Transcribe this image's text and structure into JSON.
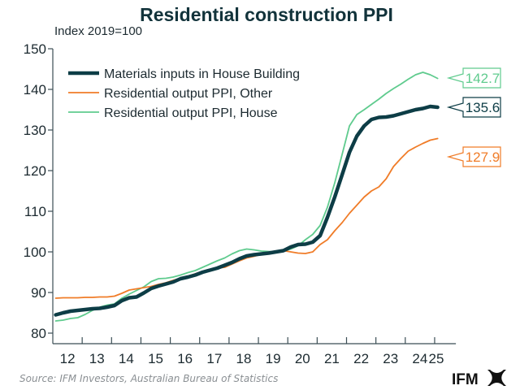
{
  "chart_data": {
    "type": "line",
    "title": "Residential construction PPI",
    "ylabel": "Index 2019=100",
    "xlabel": "",
    "ylim": [
      80,
      150
    ],
    "yticks": [
      80,
      90,
      100,
      110,
      120,
      130,
      140,
      150
    ],
    "xlim": [
      2012,
      2025.25
    ],
    "xtick_labels": [
      "12",
      "13",
      "14",
      "15",
      "16",
      "17",
      "18",
      "19",
      "20",
      "21",
      "22",
      "23",
      "24",
      "25"
    ],
    "grid": false,
    "legend_position": "top-left",
    "x": [
      2012.0,
      2012.25,
      2012.5,
      2012.75,
      2013.0,
      2013.25,
      2013.5,
      2013.75,
      2014.0,
      2014.25,
      2014.5,
      2014.75,
      2015.0,
      2015.25,
      2015.5,
      2015.75,
      2016.0,
      2016.25,
      2016.5,
      2016.75,
      2017.0,
      2017.25,
      2017.5,
      2017.75,
      2018.0,
      2018.25,
      2018.5,
      2018.75,
      2019.0,
      2019.25,
      2019.5,
      2019.75,
      2020.0,
      2020.25,
      2020.5,
      2020.75,
      2021.0,
      2021.25,
      2021.5,
      2021.75,
      2022.0,
      2022.25,
      2022.5,
      2022.75,
      2023.0,
      2023.25,
      2023.5,
      2023.75,
      2024.0,
      2024.25,
      2024.5,
      2024.75,
      2025.0
    ],
    "series": [
      {
        "name": "Materials inputs in House Building",
        "color": "#0d3d46",
        "end_label": "135.6",
        "values": [
          84.5,
          85.0,
          85.4,
          85.6,
          85.8,
          86.0,
          86.1,
          86.4,
          86.8,
          88.0,
          88.7,
          88.9,
          89.9,
          91.0,
          91.6,
          92.1,
          92.6,
          93.4,
          93.8,
          94.3,
          95.0,
          95.5,
          96.0,
          96.7,
          97.4,
          98.3,
          99.0,
          99.3,
          99.5,
          99.7,
          100.0,
          100.3,
          101.2,
          101.8,
          101.9,
          102.4,
          104.0,
          108.5,
          113.5,
          119.0,
          124.5,
          128.5,
          131.0,
          132.6,
          133.1,
          133.2,
          133.5,
          134.0,
          134.5,
          135.0,
          135.3,
          135.8,
          135.6
        ]
      },
      {
        "name": "Residential output PPI, Other",
        "color": "#f07c28",
        "end_label": "127.9",
        "values": [
          88.6,
          88.7,
          88.7,
          88.7,
          88.8,
          88.8,
          88.9,
          88.9,
          89.1,
          89.8,
          90.6,
          90.9,
          91.2,
          91.5,
          92.0,
          92.4,
          93.0,
          93.5,
          94.0,
          94.6,
          95.2,
          95.7,
          96.0,
          96.2,
          97.0,
          97.8,
          98.5,
          98.9,
          99.4,
          99.9,
          100.2,
          100.3,
          100.0,
          99.7,
          99.6,
          100.0,
          101.8,
          103.0,
          105.2,
          107.2,
          109.5,
          111.5,
          113.5,
          115.0,
          116.0,
          118.0,
          121.0,
          123.0,
          124.8,
          125.8,
          126.7,
          127.5,
          127.9
        ]
      },
      {
        "name": "Residential output PPI, House",
        "color": "#5fcb8e",
        "end_label": "142.7",
        "values": [
          83.0,
          83.2,
          83.6,
          83.8,
          84.6,
          85.6,
          86.4,
          86.9,
          87.2,
          88.6,
          89.6,
          90.5,
          91.4,
          92.7,
          93.4,
          93.5,
          93.8,
          94.3,
          94.9,
          95.4,
          96.2,
          97.0,
          97.8,
          98.5,
          99.5,
          100.3,
          100.7,
          100.5,
          100.2,
          100.1,
          100.0,
          100.2,
          100.7,
          101.5,
          103.0,
          104.3,
          106.5,
          111.0,
          117.0,
          124.0,
          131.0,
          133.8,
          135.0,
          136.3,
          137.6,
          139.0,
          140.2,
          141.3,
          142.5,
          143.6,
          144.2,
          143.6,
          142.7
        ]
      }
    ]
  },
  "footer": {
    "source": "Source: IFM Investors, Australian Bureau of Statistics",
    "logo_text": "IFM"
  },
  "colors": {
    "axis": "#3b4e55",
    "title": "#12333b"
  }
}
